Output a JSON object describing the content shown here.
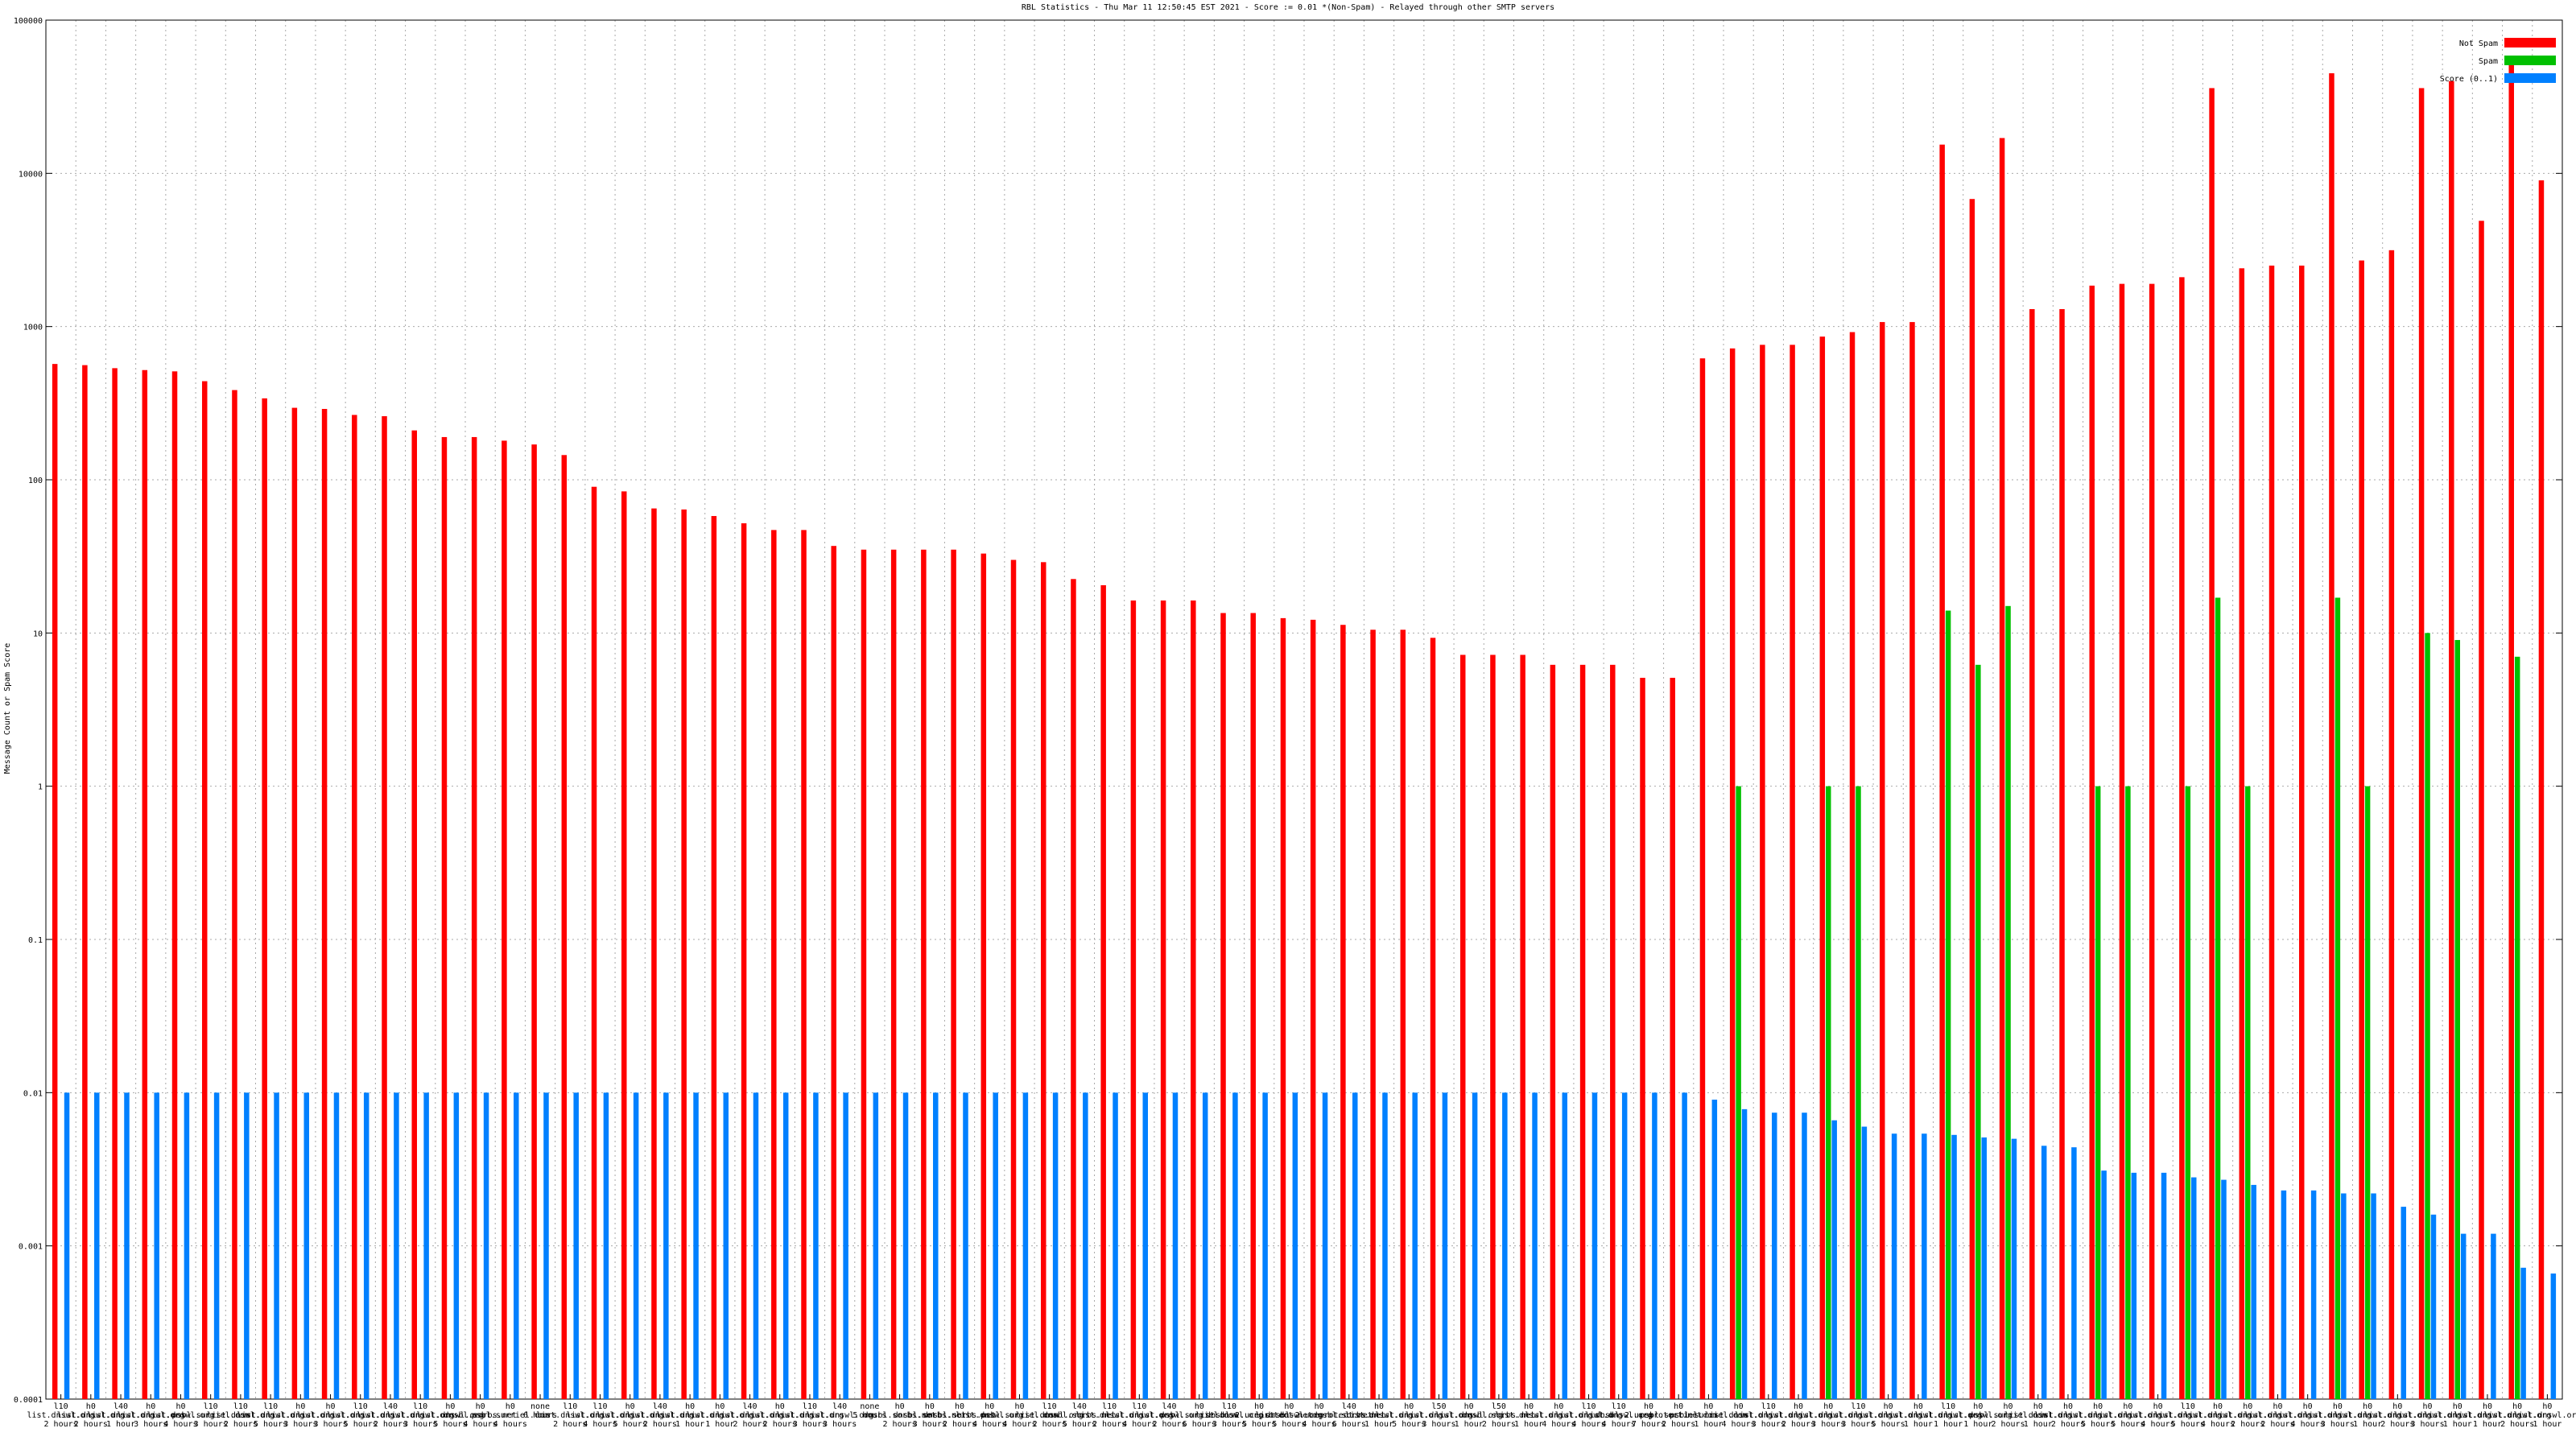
{
  "chart_data": {
    "type": "bar",
    "log_scale": true,
    "grid": true,
    "legend_position": "top-right",
    "title": "RBL Statistics - Thu Mar 11 12:50:45 EST 2021 - Score := 0.01 *(Non-Spam) - Relayed through other SMTP servers",
    "ylabel": "Message Count or Spam Score",
    "ylim": [
      0.0001,
      100000
    ],
    "yticks": [
      0.0001,
      0.001,
      0.01,
      0.1,
      1,
      10,
      100,
      1000,
      10000,
      100000
    ],
    "categories": [
      [
        "l10",
        "list.dnswl.org",
        "2 hours"
      ],
      [
        "h0",
        "list.dnswl.org",
        "2 hours"
      ],
      [
        "l40",
        "list.dnswl.org",
        "1 hour"
      ],
      [
        "h0",
        "list.dnswl.org",
        "3 hours"
      ],
      [
        "h0",
        "list.dnswl.org",
        "4 hours"
      ],
      [
        "l10",
        "psbl.surriel.com",
        "3 hours"
      ],
      [
        "l10",
        "list.dnswl.org",
        "2 hours"
      ],
      [
        "l10",
        "list.dnswl.org",
        "5 hours"
      ],
      [
        "h0",
        "list.dnswl.org",
        "3 hours"
      ],
      [
        "h0",
        "list.dnswl.org",
        "3 hours"
      ],
      [
        "l10",
        "list.dnswl.org",
        "5 hours"
      ],
      [
        "l40",
        "list.dnswl.org",
        "2 hours"
      ],
      [
        "l10",
        "list.dnswl.org",
        "3 hours"
      ],
      [
        "h0",
        "list.dnswl.org",
        "5 hours"
      ],
      [
        "h0",
        "dnsbl.sorbs.net",
        "4 hours"
      ],
      [
        "h0",
        "psbl.surriel.com",
        "4 hours"
      ],
      [
        "none",
        "6 hours"
      ],
      [
        "l10",
        "list.dnswl.org",
        "2 hours"
      ],
      [
        "l10",
        "list.dnswl.org",
        "4 hours"
      ],
      [
        "h0",
        "list.dnswl.org",
        "5 hours"
      ],
      [
        "l40",
        "list.dnswl.org",
        "2 hours"
      ],
      [
        "h0",
        "list.dnswl.org",
        "1 hour"
      ],
      [
        "h0",
        "list.dnswl.org",
        "1 hour"
      ],
      [
        "l40",
        "list.dnswl.org",
        "2 hours"
      ],
      [
        "h0",
        "list.dnswl.org",
        "2 hours"
      ],
      [
        "l10",
        "list.dnswl.org",
        "3 hours"
      ],
      [
        "l40",
        "list.dnswl.org",
        "3 hours"
      ],
      [
        "none",
        "5 hours"
      ],
      [
        "h0",
        "dnsbl.sorbs.net",
        "2 hours"
      ],
      [
        "h0",
        "dnsbl.sorbs.net",
        "3 hours"
      ],
      [
        "h0",
        "dnsbl.sorbs.net",
        "2 hours"
      ],
      [
        "h0",
        "list.dnswl.org",
        "4 hours"
      ],
      [
        "h0",
        "psbl.surriel.com",
        "4 hours"
      ],
      [
        "l10",
        "list.dnswl.org",
        "2 hours"
      ],
      [
        "l40",
        "dnsbl.sorbs.net",
        "5 hours"
      ],
      [
        "l10",
        "list.dnswl.org",
        "2 hours"
      ],
      [
        "l10",
        "list.dnswl.org",
        "4 hours"
      ],
      [
        "l40",
        "list.dnswl.org",
        "2 hours"
      ],
      [
        "h0",
        "psbl.surriel.com",
        "6 hours"
      ],
      [
        "l10",
        "list.dnswl.org",
        "3 hours"
      ],
      [
        "h0",
        "dnsbl-2.uceprotect.net",
        "5 hours"
      ],
      [
        "h0",
        "list.dnswl.org",
        "5 hours"
      ],
      [
        "h0",
        "dnsbl-2.uceprotect.net",
        "4 hours"
      ],
      [
        "l40",
        "dnsbl.sorbs.net",
        "6 hours"
      ],
      [
        "h0",
        "list.dnswl.org",
        "1 hour"
      ],
      [
        "h0",
        "list.dnswl.org",
        "5 hours"
      ],
      [
        "l50",
        "list.dnswl.org",
        "3 hours"
      ],
      [
        "h0",
        "list.dnswl.org",
        "1 hour"
      ],
      [
        "l50",
        "dnsbl.sorbs.net",
        "2 hours"
      ],
      [
        "h0",
        "list.dnswl.org",
        "1 hour"
      ],
      [
        "h0",
        "list.dnswl.org",
        "4 hours"
      ],
      [
        "l10",
        "list.dnswl.org",
        "4 hours"
      ],
      [
        "l10",
        "list.dnswl.org",
        "4 hours"
      ],
      [
        "h0",
        "dnsbl-2.uceprotect.net",
        "7 hours"
      ],
      [
        "h0",
        "psbl.surriel.com",
        "2 hours"
      ],
      [
        "h0",
        "psbl.surriel.com",
        "1 hour"
      ],
      [
        "h0",
        "list.dnswl.org",
        "4 hours"
      ],
      [
        "l10",
        "list.dnswl.org",
        "3 hours"
      ],
      [
        "h0",
        "list.dnswl.org",
        "2 hours"
      ],
      [
        "h0",
        "list.dnswl.org",
        "3 hours"
      ],
      [
        "l10",
        "list.dnswl.org",
        "3 hours"
      ],
      [
        "h0",
        "list.dnswl.org",
        "5 hours"
      ],
      [
        "h0",
        "list.dnswl.org",
        "1 hour"
      ],
      [
        "l10",
        "list.dnswl.org",
        "1 hour"
      ],
      [
        "h0",
        "list.dnswl.org",
        "1 hour"
      ],
      [
        "h0",
        "psbl.surriel.com",
        "2 hours"
      ],
      [
        "h0",
        "list.dnswl.org",
        "1 hour"
      ],
      [
        "h0",
        "list.dnswl.org",
        "2 hours"
      ],
      [
        "h0",
        "list.dnswl.org",
        "5 hours"
      ],
      [
        "h0",
        "list.dnswl.org",
        "5 hours"
      ],
      [
        "h0",
        "list.dnswl.org",
        "4 hours"
      ],
      [
        "l10",
        "list.dnswl.org",
        "5 hours"
      ],
      [
        "h0",
        "list.dnswl.org",
        "4 hours"
      ],
      [
        "h0",
        "list.dnswl.org",
        "2 hours"
      ],
      [
        "h0",
        "list.dnswl.org",
        "2 hours"
      ],
      [
        "h0",
        "list.dnswl.org",
        "4 hours"
      ],
      [
        "h0",
        "list.dnswl.org",
        "3 hours"
      ],
      [
        "h0",
        "list.dnswl.org",
        "1 hour"
      ],
      [
        "h0",
        "list.dnswl.org",
        "2 hours"
      ],
      [
        "h0",
        "list.dnswl.org",
        "3 hours"
      ],
      [
        "h0",
        "list.dnswl.org",
        "1 hour"
      ],
      [
        "h0",
        "list.dnswl.org",
        "1 hour"
      ],
      [
        "h0",
        "list.dnswl.org",
        "2 hours"
      ],
      [
        "h0",
        "list.dnswl.org",
        "1 hour"
      ]
    ],
    "series": [
      {
        "name": "Not Spam",
        "color": "#ff0000",
        "values": [
          570,
          560,
          535,
          520,
          510,
          440,
          385,
          340,
          295,
          290,
          265,
          260,
          210,
          190,
          190,
          180,
          170,
          145,
          90,
          84,
          65,
          64,
          58,
          52,
          47,
          47,
          37,
          35,
          35,
          35,
          35,
          33,
          30,
          29,
          22.5,
          20.5,
          16.3,
          16.3,
          16.3,
          13.5,
          13.5,
          12.5,
          12.2,
          11.3,
          10.5,
          10.5,
          9.3,
          7.2,
          7.2,
          7.2,
          6.2,
          6.2,
          6.2,
          5.1,
          5.1,
          620,
          720,
          760,
          760,
          860,
          920,
          1070,
          1070,
          15400,
          6800,
          17000,
          1300,
          1300,
          1850,
          1900,
          1900,
          2100,
          36000,
          2400,
          2500,
          2500,
          45000,
          2700,
          3150,
          36000,
          40000,
          4900,
          57000,
          9000
        ]
      },
      {
        "name": "Spam",
        "color": "#00c000",
        "values": [
          null,
          null,
          null,
          null,
          null,
          null,
          null,
          null,
          null,
          null,
          null,
          null,
          null,
          null,
          null,
          null,
          null,
          null,
          null,
          null,
          null,
          null,
          null,
          null,
          null,
          null,
          null,
          null,
          null,
          null,
          null,
          null,
          null,
          null,
          null,
          null,
          null,
          null,
          null,
          null,
          null,
          null,
          null,
          null,
          null,
          null,
          null,
          null,
          null,
          null,
          null,
          null,
          null,
          null,
          null,
          null,
          1,
          null,
          null,
          1,
          1,
          null,
          null,
          14,
          6.2,
          15,
          null,
          null,
          1,
          1,
          null,
          1,
          17,
          1,
          null,
          null,
          17,
          1,
          null,
          10,
          9,
          null,
          7,
          null
        ]
      },
      {
        "name": "Score (0..1)",
        "color": "#0080ff",
        "values": [
          0.01,
          0.01,
          0.01,
          0.01,
          0.01,
          0.01,
          0.01,
          0.01,
          0.01,
          0.01,
          0.01,
          0.01,
          0.01,
          0.01,
          0.01,
          0.01,
          0.01,
          0.01,
          0.01,
          0.01,
          0.01,
          0.01,
          0.01,
          0.01,
          0.01,
          0.01,
          0.01,
          0.01,
          0.01,
          0.01,
          0.01,
          0.01,
          0.01,
          0.01,
          0.01,
          0.01,
          0.01,
          0.01,
          0.01,
          0.01,
          0.01,
          0.01,
          0.01,
          0.01,
          0.01,
          0.01,
          0.01,
          0.01,
          0.01,
          0.01,
          0.01,
          0.01,
          0.01,
          0.01,
          0.01,
          0.009,
          0.0078,
          0.0074,
          0.0074,
          0.0066,
          0.006,
          0.0054,
          0.0054,
          0.0053,
          0.0051,
          0.005,
          0.0045,
          0.0044,
          0.0031,
          0.003,
          0.003,
          0.0028,
          0.0027,
          0.0025,
          0.0023,
          0.0023,
          0.0022,
          0.0022,
          0.0018,
          0.0016,
          0.0012,
          0.0012,
          0.00072,
          0.00066
        ]
      }
    ]
  }
}
